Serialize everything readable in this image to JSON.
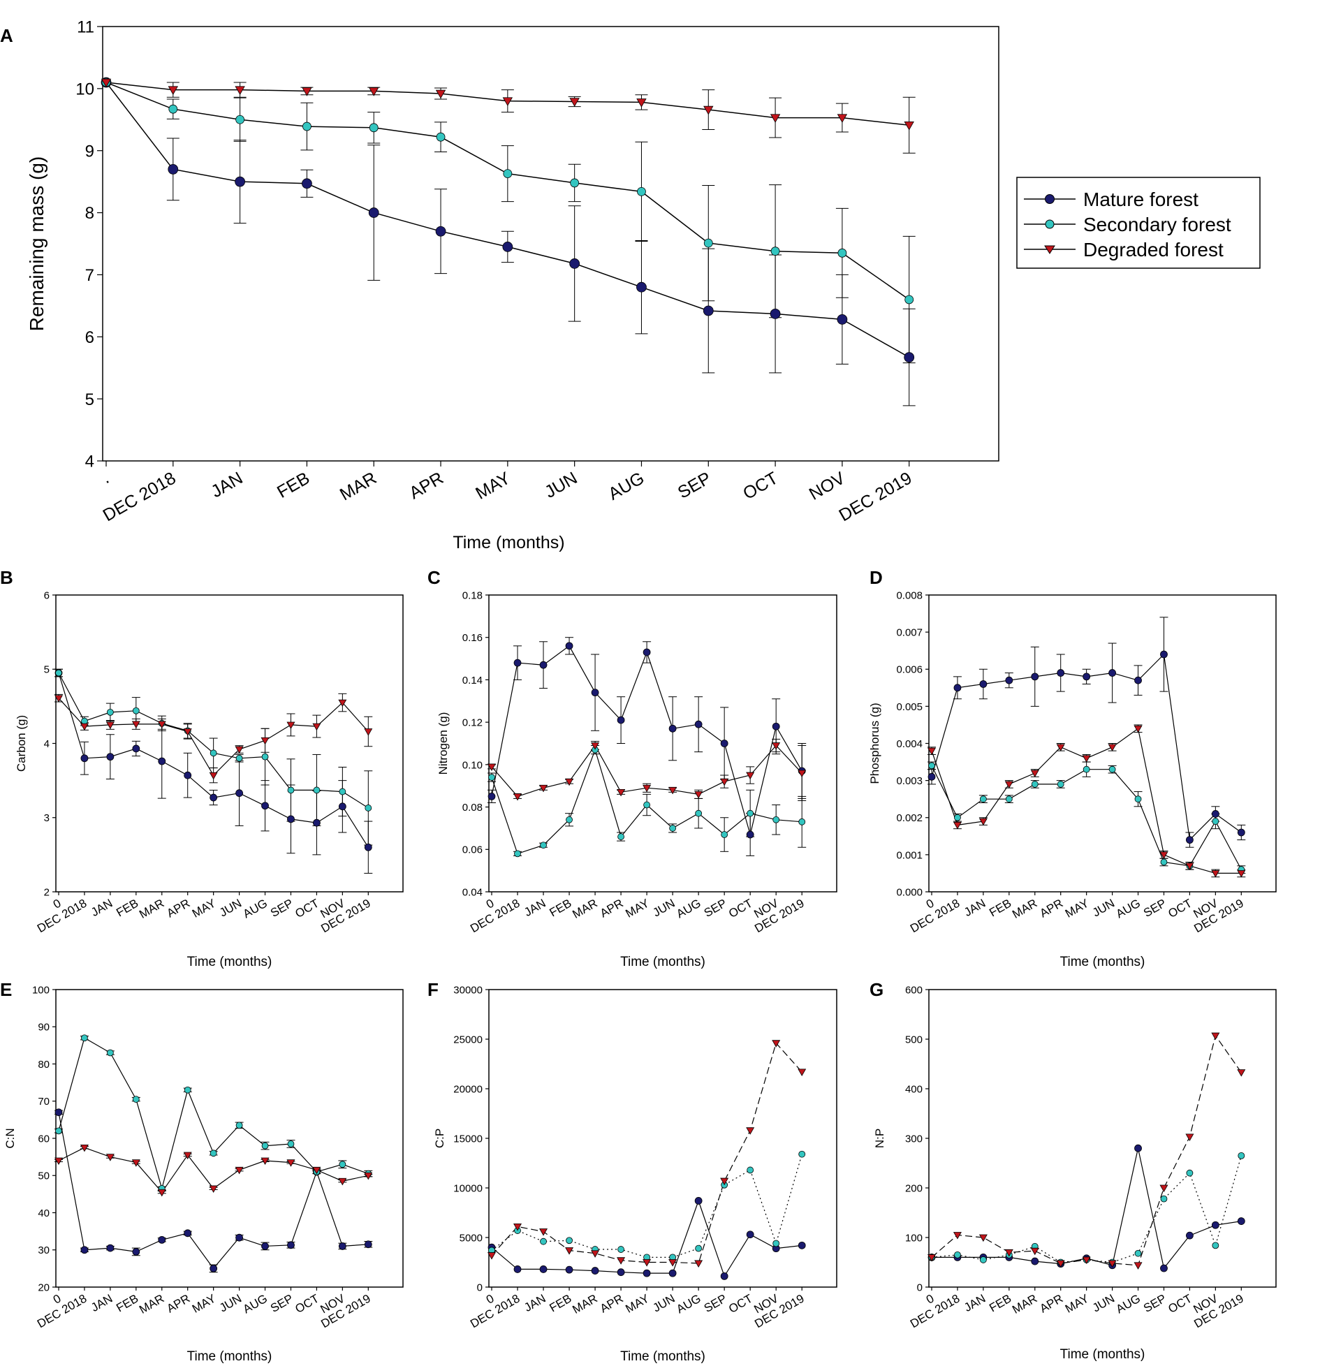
{
  "colors": {
    "mature": "#1a1a6e",
    "secondary": "#33c5c0",
    "degraded": "#c0151b",
    "axis": "#000000",
    "background": "#ffffff"
  },
  "legend": {
    "entries": [
      "Mature forest",
      "Secondary forest",
      "Degraded forest"
    ]
  },
  "chart_data": [
    {
      "id": "A",
      "type": "line",
      "panel_label": "A",
      "xlabel": "Time (months)",
      "ylabel": "Remaining mass (g)",
      "categories": [
        ".",
        "DEC 2018",
        "JAN",
        "FEB",
        "MAR",
        "APR",
        "MAY",
        "JUN",
        "AUG",
        "SEP",
        "OCT",
        "NOV",
        "DEC 2019"
      ],
      "ylim": [
        4,
        11
      ],
      "yticks": [
        4,
        5,
        6,
        7,
        8,
        9,
        10,
        11
      ],
      "ytick_labels": [
        "4",
        "5",
        "6",
        "7",
        "8",
        "9",
        "10",
        "11"
      ],
      "series": [
        {
          "name": "Mature forest",
          "key": "mature",
          "values": [
            10.1,
            8.7,
            8.5,
            8.47,
            8.0,
            7.7,
            7.45,
            7.18,
            6.8,
            6.42,
            6.37,
            6.28,
            5.67
          ],
          "errors": [
            0,
            0.5,
            0.67,
            0.22,
            1.09,
            0.68,
            0.25,
            0.93,
            0.75,
            1.0,
            0.95,
            0.72,
            0.78
          ]
        },
        {
          "name": "Secondary forest",
          "key": "secondary",
          "values": [
            10.1,
            9.67,
            9.5,
            9.39,
            9.37,
            9.22,
            8.63,
            8.48,
            8.34,
            7.51,
            7.38,
            7.35,
            6.6
          ],
          "errors": [
            0,
            0.16,
            0.35,
            0.38,
            0.25,
            0.24,
            0.45,
            0.3,
            0.8,
            0.93,
            1.07,
            0.72,
            1.02
          ]
        },
        {
          "name": "Degraded forest",
          "key": "degraded",
          "values": [
            10.1,
            9.98,
            9.98,
            9.96,
            9.96,
            9.92,
            9.8,
            9.79,
            9.78,
            9.66,
            9.53,
            9.53,
            9.41
          ],
          "errors": [
            0,
            0.12,
            0.12,
            0.06,
            0.06,
            0.09,
            0.18,
            0.08,
            0.12,
            0.32,
            0.32,
            0.23,
            0.45
          ]
        }
      ]
    },
    {
      "id": "B",
      "type": "line",
      "panel_label": "B",
      "xlabel": "Time (months)",
      "ylabel": "Carbon (g)",
      "categories": [
        "0",
        "DEC 2018",
        "JAN",
        "FEB",
        "MAR",
        "APR",
        "MAY",
        "JUN",
        "AUG",
        "SEP",
        "OCT",
        "NOV",
        "DEC 2019"
      ],
      "ylim": [
        2,
        6
      ],
      "yticks": [
        2,
        3,
        4,
        5,
        6
      ],
      "ytick_labels": [
        "2",
        "3",
        "4",
        "5",
        "6"
      ],
      "series": [
        {
          "name": "Mature forest",
          "key": "mature",
          "values": [
            4.95,
            3.8,
            3.82,
            3.93,
            3.76,
            3.57,
            3.27,
            3.33,
            3.16,
            2.98,
            2.93,
            3.15,
            2.6
          ],
          "errors": [
            0.05,
            0.22,
            0.3,
            0.1,
            0.5,
            0.3,
            0.1,
            0.44,
            0.34,
            0.46,
            0.43,
            0.35,
            0.35
          ]
        },
        {
          "name": "Secondary forest",
          "key": "secondary",
          "values": [
            4.95,
            4.3,
            4.42,
            4.44,
            4.27,
            4.17,
            3.87,
            3.8,
            3.82,
            3.37,
            3.37,
            3.35,
            3.13
          ],
          "errors": [
            0.05,
            0.06,
            0.12,
            0.18,
            0.1,
            0.1,
            0.2,
            0.05,
            0.38,
            0.42,
            0.48,
            0.33,
            0.5
          ]
        },
        {
          "name": "Degraded forest",
          "key": "degraded",
          "values": [
            4.61,
            4.23,
            4.25,
            4.26,
            4.26,
            4.16,
            3.57,
            3.92,
            4.04,
            4.25,
            4.23,
            4.55,
            4.16
          ],
          "errors": [
            0.05,
            0.05,
            0.06,
            0.07,
            0.07,
            0.1,
            0.1,
            0.05,
            0.16,
            0.15,
            0.15,
            0.12,
            0.2
          ]
        }
      ]
    },
    {
      "id": "C",
      "type": "line",
      "panel_label": "C",
      "xlabel": "Time (months)",
      "ylabel": "Nitrogen (g)",
      "categories": [
        "0",
        "DEC 2018",
        "JAN",
        "FEB",
        "MAR",
        "APR",
        "MAY",
        "JUN",
        "AUG",
        "SEP",
        "OCT",
        "NOV",
        "DEC 2019"
      ],
      "ylim": [
        0.04,
        0.18
      ],
      "yticks": [
        0.04,
        0.06,
        0.08,
        0.1,
        0.12,
        0.14,
        0.16,
        0.18
      ],
      "ytick_labels": [
        "0.04",
        "0.06",
        "0.08",
        "0.10",
        "0.12",
        "0.14",
        "0.16",
        "0.18"
      ],
      "series": [
        {
          "name": "Mature forest",
          "key": "mature",
          "values": [
            0.085,
            0.148,
            0.147,
            0.156,
            0.134,
            0.121,
            0.153,
            0.117,
            0.119,
            0.11,
            0.067,
            0.118,
            0.097
          ],
          "errors": [
            0.003,
            0.008,
            0.011,
            0.004,
            0.018,
            0.011,
            0.005,
            0.015,
            0.013,
            0.017,
            0.01,
            0.013,
            0.013
          ]
        },
        {
          "name": "Secondary forest",
          "key": "secondary",
          "values": [
            0.094,
            0.058,
            0.062,
            0.074,
            0.107,
            0.066,
            0.081,
            0.07,
            0.077,
            0.067,
            0.077,
            0.074,
            0.073
          ],
          "errors": [
            0.002,
            0.001,
            0.001,
            0.003,
            0.002,
            0.002,
            0.005,
            0.002,
            0.007,
            0.008,
            0.011,
            0.007,
            0.012
          ]
        },
        {
          "name": "Degraded forest",
          "key": "degraded",
          "values": [
            0.099,
            0.085,
            0.089,
            0.092,
            0.109,
            0.087,
            0.089,
            0.088,
            0.086,
            0.092,
            0.095,
            0.109,
            0.096
          ],
          "errors": [
            0.001,
            0.001,
            0.001,
            0.001,
            0.002,
            0.001,
            0.002,
            0.001,
            0.002,
            0.003,
            0.004,
            0.003,
            0.013
          ]
        }
      ]
    },
    {
      "id": "D",
      "type": "line",
      "panel_label": "D",
      "xlabel": "Time (months)",
      "ylabel": "Phosphorus (g)",
      "categories": [
        "0",
        "DEC 2018",
        "JAN",
        "FEB",
        "MAR",
        "APR",
        "MAY",
        "JUN",
        "AUG",
        "SEP",
        "OCT",
        "NOV",
        "DEC 2019"
      ],
      "ylim": [
        0,
        0.008
      ],
      "yticks": [
        0,
        0.001,
        0.002,
        0.003,
        0.004,
        0.005,
        0.006,
        0.007,
        0.008
      ],
      "ytick_labels": [
        "0.000",
        "0.001",
        "0.002",
        "0.003",
        "0.004",
        "0.005",
        "0.006",
        "0.007",
        "0.008"
      ],
      "series": [
        {
          "name": "Mature forest",
          "key": "mature",
          "values": [
            0.0031,
            0.0055,
            0.0056,
            0.0057,
            0.0058,
            0.0059,
            0.0058,
            0.0059,
            0.0057,
            0.0064,
            0.0014,
            0.0021,
            0.0016
          ],
          "errors": [
            0.0002,
            0.0003,
            0.0004,
            0.0002,
            0.0008,
            0.0005,
            0.0002,
            0.0008,
            0.0004,
            0.001,
            0.0002,
            0.0002,
            0.0002
          ]
        },
        {
          "name": "Secondary forest",
          "key": "secondary",
          "values": [
            0.0034,
            0.002,
            0.0025,
            0.0025,
            0.0029,
            0.0029,
            0.0033,
            0.0033,
            0.0025,
            0.0008,
            0.0007,
            0.0019,
            0.0006
          ],
          "errors": [
            0.0001,
            0.0001,
            0.0001,
            0.0001,
            0.0001,
            0.0001,
            0.0002,
            0.0001,
            0.0002,
            0.0001,
            0.0001,
            0.0002,
            0.0001
          ]
        },
        {
          "name": "Degraded forest",
          "key": "degraded",
          "values": [
            0.0038,
            0.0018,
            0.0019,
            0.0029,
            0.0032,
            0.0039,
            0.0036,
            0.0039,
            0.0044,
            0.001,
            0.0007,
            0.0005,
            0.0005
          ],
          "errors": [
            0.0001,
            0.0001,
            0.0001,
            0.0001,
            0.0001,
            0.0001,
            0.0001,
            0.0001,
            0.0001,
            0.0001,
            0.0001,
            0.0001,
            0.0001
          ]
        }
      ]
    },
    {
      "id": "E",
      "type": "line",
      "panel_label": "E",
      "xlabel": "Time (months)",
      "ylabel": "C:N",
      "categories": [
        "0",
        "DEC 2018",
        "JAN",
        "FEB",
        "MAR",
        "APR",
        "MAY",
        "JUN",
        "AUG",
        "SEP",
        "OCT",
        "NOV",
        "DEC 2019"
      ],
      "ylim": [
        20,
        100
      ],
      "yticks": [
        20,
        30,
        40,
        50,
        60,
        70,
        80,
        90,
        100
      ],
      "ytick_labels": [
        "20",
        "30",
        "40",
        "50",
        "60",
        "70",
        "80",
        "90",
        "100"
      ],
      "series": [
        {
          "name": "Mature forest",
          "key": "mature",
          "values": [
            67,
            30,
            30.5,
            29.5,
            32.7,
            34.5,
            25,
            33.3,
            31,
            31.3,
            51,
            31,
            31.5
          ],
          "errors": [
            0.5,
            0.5,
            0.5,
            1,
            0.5,
            0.5,
            1,
            0.7,
            1,
            0.8,
            0.5,
            0.8,
            0.8
          ]
        },
        {
          "name": "Secondary forest",
          "key": "secondary",
          "values": [
            62,
            87,
            83,
            70.5,
            46.5,
            73,
            56,
            63.5,
            58,
            58.5,
            51,
            53,
            50.5
          ],
          "errors": [
            0.5,
            0.5,
            0.5,
            0.5,
            0.5,
            0.5,
            0.5,
            0.8,
            1,
            1,
            0.5,
            1,
            0.8
          ]
        },
        {
          "name": "Degraded forest",
          "key": "degraded",
          "values": [
            54,
            57.5,
            55,
            53.5,
            45.5,
            55.5,
            46.5,
            51.5,
            54,
            53.5,
            51.5,
            48.5,
            50
          ],
          "errors": [
            0.3,
            0.3,
            0.3,
            0.3,
            0.3,
            0.3,
            0.3,
            0.3,
            0.3,
            0.3,
            0.3,
            0.3,
            0.3
          ]
        }
      ]
    },
    {
      "id": "F",
      "type": "line",
      "panel_label": "F",
      "xlabel": "Time (months)",
      "ylabel": "C:P",
      "categories": [
        "0",
        "DEC 2018",
        "JAN",
        "FEB",
        "MAR",
        "APR",
        "MAY",
        "JUN",
        "AUG",
        "SEP",
        "OCT",
        "NOV",
        "DEC 2019"
      ],
      "ylim": [
        0,
        30000
      ],
      "yticks": [
        0,
        5000,
        10000,
        15000,
        20000,
        25000,
        30000
      ],
      "ytick_labels": [
        "0",
        "5000",
        "10000",
        "15000",
        "20000",
        "25000",
        "30000"
      ],
      "series": [
        {
          "name": "Mature forest",
          "key": "mature",
          "values": [
            4000,
            1800,
            1800,
            1750,
            1650,
            1500,
            1400,
            1400,
            8700,
            1100,
            5300,
            3900,
            4200
          ],
          "errors": []
        },
        {
          "name": "Secondary forest",
          "key": "secondary",
          "values": [
            3700,
            5700,
            4600,
            4700,
            3800,
            3800,
            3000,
            3000,
            3900,
            10300,
            11800,
            4400,
            13400
          ],
          "errors": []
        },
        {
          "name": "Degraded forest",
          "key": "degraded",
          "values": [
            3200,
            6100,
            5600,
            3700,
            3400,
            2700,
            2500,
            2500,
            2400,
            10700,
            15800,
            24600,
            21700
          ],
          "errors": []
        }
      ]
    },
    {
      "id": "G",
      "type": "line",
      "panel_label": "G",
      "xlabel": "Time (months)",
      "ylabel": "N:P",
      "categories": [
        "0",
        "DEC 2018",
        "JAN",
        "FEB",
        "MAR",
        "APR",
        "MAY",
        "JUN",
        "AUG",
        "SEP",
        "OCT",
        "NOV",
        "DEC 2019"
      ],
      "ylim": [
        0,
        600
      ],
      "yticks": [
        0,
        100,
        200,
        300,
        400,
        500,
        600
      ],
      "ytick_labels": [
        "0",
        "100",
        "200",
        "300",
        "400",
        "500",
        "600"
      ],
      "series": [
        {
          "name": "Mature forest",
          "key": "mature",
          "values": [
            60,
            60,
            60,
            60,
            52,
            47,
            58,
            44,
            280,
            38,
            104,
            125,
            133
          ],
          "errors": []
        },
        {
          "name": "Secondary forest",
          "key": "secondary",
          "values": [
            60,
            65,
            55,
            65,
            82,
            50,
            55,
            50,
            68,
            178,
            230,
            84,
            265
          ],
          "errors": []
        },
        {
          "name": "Degraded forest",
          "key": "degraded",
          "values": [
            60,
            105,
            100,
            70,
            73,
            48,
            55,
            48,
            44,
            200,
            303,
            507,
            433
          ],
          "errors": []
        }
      ]
    }
  ]
}
